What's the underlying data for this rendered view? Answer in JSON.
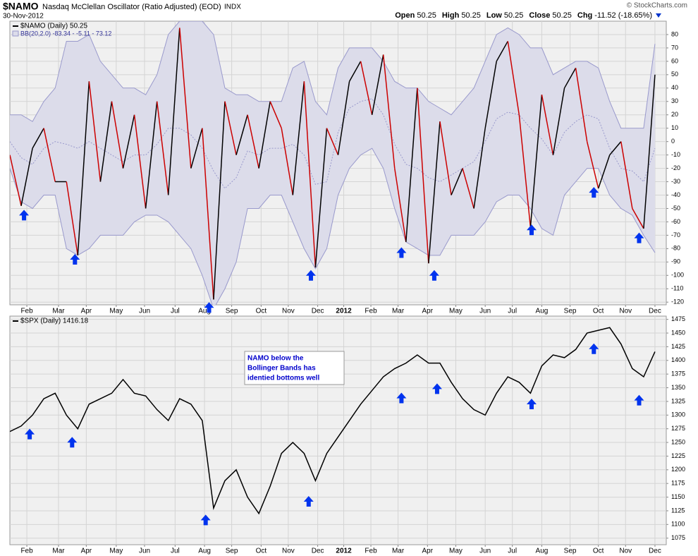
{
  "header": {
    "symbol": "$NAMO",
    "name": "Nasdaq McClellan Oscillator (Ratio Adjusted) (EOD)",
    "exchange": "INDX",
    "date": "30-Nov-2012",
    "source": "© StockCharts.com",
    "quote": [
      {
        "label": "Open",
        "value": "50.25"
      },
      {
        "label": "High",
        "value": "50.25"
      },
      {
        "label": "Low",
        "value": "50.25"
      },
      {
        "label": "Close",
        "value": "50.25"
      },
      {
        "label": "Chg",
        "value": "-11.52 (-18.65%)"
      }
    ]
  },
  "chart_data": [
    {
      "type": "line",
      "series": [
        {
          "name": "$NAMO (Daily) 50.25",
          "color": "#000000",
          "down_color": "#cc0000",
          "values": [
            -10,
            -48,
            -5,
            10,
            -30,
            -30,
            -85,
            45,
            -30,
            30,
            -20,
            20,
            -50,
            30,
            -40,
            85,
            -20,
            10,
            -118,
            30,
            -10,
            20,
            -20,
            30,
            10,
            -40,
            45,
            -94,
            10,
            -10,
            45,
            60,
            20,
            65,
            -20,
            -75,
            40,
            -91,
            15,
            -40,
            -20,
            -50,
            10,
            60,
            75,
            20,
            -64,
            35,
            -10,
            40,
            55,
            0,
            -35,
            -10,
            0,
            -50,
            -65,
            50
          ]
        }
      ],
      "bands": {
        "name": "BB(20,2.0) -83.34 - -5.11 - 73.12",
        "color": "#9999cc",
        "fill": "#dcdcea",
        "upper": [
          20,
          20,
          15,
          30,
          40,
          75,
          75,
          80,
          60,
          50,
          40,
          40,
          35,
          50,
          80,
          90,
          90,
          90,
          80,
          40,
          35,
          35,
          30,
          30,
          30,
          55,
          60,
          30,
          20,
          55,
          70,
          70,
          70,
          60,
          45,
          40,
          40,
          30,
          25,
          20,
          30,
          40,
          60,
          80,
          85,
          80,
          70,
          70,
          50,
          55,
          60,
          60,
          55,
          30,
          10,
          10,
          10,
          73
        ],
        "middle": [
          0,
          -12,
          -17,
          -5,
          0,
          -2,
          -5,
          0,
          -5,
          -10,
          -15,
          -10,
          -10,
          -2,
          10,
          10,
          5,
          -5,
          -22,
          -35,
          -27,
          -7,
          -10,
          -5,
          -5,
          -2,
          -10,
          -32,
          -30,
          7,
          25,
          30,
          32,
          20,
          -2,
          -17,
          -20,
          -27,
          -30,
          -25,
          -20,
          -15,
          0,
          17,
          22,
          20,
          10,
          2,
          -10,
          7,
          15,
          20,
          17,
          -5,
          -20,
          -22,
          -30,
          -5
        ],
        "lower": [
          -20,
          -45,
          -50,
          -40,
          -40,
          -80,
          -85,
          -80,
          -70,
          -70,
          -70,
          -60,
          -55,
          -55,
          -60,
          -70,
          -80,
          -100,
          -125,
          -110,
          -90,
          -50,
          -50,
          -40,
          -40,
          -60,
          -80,
          -95,
          -80,
          -40,
          -20,
          -10,
          -5,
          -20,
          -50,
          -75,
          -80,
          -85,
          -85,
          -70,
          -70,
          -70,
          -60,
          -45,
          -40,
          -40,
          -50,
          -65,
          -70,
          -40,
          -30,
          -20,
          -20,
          -40,
          -50,
          -55,
          -70,
          -83
        ]
      },
      "xlim": [
        0,
        58
      ],
      "xticks": [
        {
          "value": 1.5,
          "label": "Feb"
        },
        {
          "value": 4.3,
          "label": "Mar"
        },
        {
          "value": 6.75,
          "label": "Apr"
        },
        {
          "value": 9.4,
          "label": "May"
        },
        {
          "value": 11.9,
          "label": "Jun"
        },
        {
          "value": 14.6,
          "label": "Jul"
        },
        {
          "value": 17.2,
          "label": "Aug"
        },
        {
          "value": 19.6,
          "label": "Sep"
        },
        {
          "value": 22.2,
          "label": "Oct"
        },
        {
          "value": 24.6,
          "label": "Nov"
        },
        {
          "value": 27.2,
          "label": "Dec"
        },
        {
          "value": 29.5,
          "label": "2012"
        },
        {
          "value": 31.9,
          "label": "Feb"
        },
        {
          "value": 34.3,
          "label": "Mar"
        },
        {
          "value": 36.9,
          "label": "Apr"
        },
        {
          "value": 39.4,
          "label": "May"
        },
        {
          "value": 42,
          "label": "Jun"
        },
        {
          "value": 44.4,
          "label": "Jul"
        },
        {
          "value": 47,
          "label": "Aug"
        },
        {
          "value": 49.5,
          "label": "Sep"
        },
        {
          "value": 52,
          "label": "Oct"
        },
        {
          "value": 54.4,
          "label": "Nov"
        },
        {
          "value": 57,
          "label": "Dec"
        }
      ],
      "ylim": [
        -122,
        90
      ],
      "yticks": [
        -120,
        -110,
        -100,
        -90,
        -80,
        -70,
        -60,
        -50,
        -40,
        -30,
        -20,
        -10,
        0,
        10,
        20,
        30,
        40,
        50,
        60,
        70,
        80
      ],
      "grid": true,
      "arrow_color": "#0033ee",
      "arrows": [
        {
          "x": 1.25,
          "y": -51
        },
        {
          "x": 5.75,
          "y": -84
        },
        {
          "x": 17.6,
          "y": -120
        },
        {
          "x": 26.6,
          "y": -96
        },
        {
          "x": 34.6,
          "y": -79
        },
        {
          "x": 37.5,
          "y": -96
        },
        {
          "x": 46.1,
          "y": -62
        },
        {
          "x": 51.6,
          "y": -34
        },
        {
          "x": 55.6,
          "y": -68
        }
      ]
    },
    {
      "type": "line",
      "series": [
        {
          "name": "$SPX (Daily) 1416.18",
          "color": "#000000",
          "values": [
            1270,
            1280,
            1300,
            1330,
            1340,
            1300,
            1275,
            1320,
            1330,
            1340,
            1365,
            1340,
            1335,
            1310,
            1290,
            1330,
            1320,
            1290,
            1130,
            1180,
            1200,
            1150,
            1120,
            1170,
            1230,
            1250,
            1230,
            1180,
            1230,
            1260,
            1290,
            1320,
            1345,
            1370,
            1385,
            1395,
            1410,
            1395,
            1395,
            1360,
            1330,
            1310,
            1300,
            1340,
            1370,
            1360,
            1340,
            1390,
            1410,
            1405,
            1420,
            1450,
            1455,
            1460,
            1430,
            1385,
            1370,
            1416
          ]
        }
      ],
      "xlim": [
        0,
        58
      ],
      "xticks": [
        {
          "value": 1.5,
          "label": "Feb"
        },
        {
          "value": 4.3,
          "label": "Mar"
        },
        {
          "value": 6.75,
          "label": "Apr"
        },
        {
          "value": 9.4,
          "label": "May"
        },
        {
          "value": 11.9,
          "label": "Jun"
        },
        {
          "value": 14.6,
          "label": "Jul"
        },
        {
          "value": 17.2,
          "label": "Aug"
        },
        {
          "value": 19.6,
          "label": "Sep"
        },
        {
          "value": 22.2,
          "label": "Oct"
        },
        {
          "value": 24.6,
          "label": "Nov"
        },
        {
          "value": 27.2,
          "label": "Dec"
        },
        {
          "value": 29.5,
          "label": "2012"
        },
        {
          "value": 31.9,
          "label": "Feb"
        },
        {
          "value": 34.3,
          "label": "Mar"
        },
        {
          "value": 36.9,
          "label": "Apr"
        },
        {
          "value": 39.4,
          "label": "May"
        },
        {
          "value": 42,
          "label": "Jun"
        },
        {
          "value": 44.4,
          "label": "Jul"
        },
        {
          "value": 47,
          "label": "Aug"
        },
        {
          "value": 49.5,
          "label": "Sep"
        },
        {
          "value": 52,
          "label": "Oct"
        },
        {
          "value": 54.4,
          "label": "Nov"
        },
        {
          "value": 57,
          "label": "Dec"
        }
      ],
      "ylim": [
        1063,
        1481
      ],
      "yticks": [
        1075,
        1100,
        1125,
        1150,
        1175,
        1200,
        1225,
        1250,
        1275,
        1300,
        1325,
        1350,
        1375,
        1400,
        1425,
        1450,
        1475
      ],
      "grid": true,
      "arrow_color": "#0033ee",
      "arrows": [
        {
          "x": 1.75,
          "y": 1275
        },
        {
          "x": 5.5,
          "y": 1260
        },
        {
          "x": 17.3,
          "y": 1118
        },
        {
          "x": 26.4,
          "y": 1152
        },
        {
          "x": 34.6,
          "y": 1341
        },
        {
          "x": 37.75,
          "y": 1358
        },
        {
          "x": 46.1,
          "y": 1330
        },
        {
          "x": 51.6,
          "y": 1431
        },
        {
          "x": 55.6,
          "y": 1337
        }
      ],
      "note": [
        "NAMO below the",
        "Bollinger Bands has",
        "identied bottoms well"
      ]
    }
  ]
}
